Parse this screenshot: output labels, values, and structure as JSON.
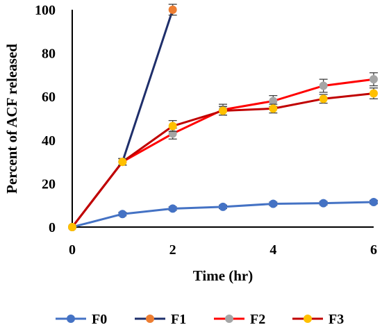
{
  "chart_data": {
    "type": "line",
    "xlabel": "Time  (hr)",
    "ylabel": "Percent of ACF released",
    "xlim": [
      0,
      6
    ],
    "ylim": [
      0,
      100
    ],
    "x_ticks": [
      "0",
      "2",
      "4",
      "6"
    ],
    "y_ticks": [
      "0",
      "20",
      "40",
      "60",
      "80",
      "100"
    ],
    "grid": false,
    "legend_position": "bottom",
    "series": [
      {
        "name": "F0",
        "line_color": "#4472c4",
        "marker_color": "#4472c4",
        "x": [
          0,
          1,
          2,
          3,
          4,
          5,
          6
        ],
        "y": [
          0,
          6,
          8.5,
          9.3,
          10.7,
          11,
          11.5
        ],
        "error": [
          0,
          0.8,
          0.8,
          0.8,
          0.8,
          0.8,
          0.8
        ]
      },
      {
        "name": "F1",
        "line_color": "#1f2f6b",
        "marker_color": "#ed7d31",
        "x": [
          0,
          1,
          2
        ],
        "y": [
          0,
          30,
          100
        ],
        "error": [
          0,
          1.5,
          2.5
        ]
      },
      {
        "name": "F2",
        "line_color": "#ff0000",
        "marker_color": "#a5a5a5",
        "x": [
          0,
          1,
          2,
          3,
          4,
          5,
          6
        ],
        "y": [
          0,
          30,
          43,
          54,
          58,
          65,
          68
        ],
        "error": [
          0,
          1.5,
          2.5,
          2.5,
          2.5,
          3,
          3
        ]
      },
      {
        "name": "F3",
        "line_color": "#c00000",
        "marker_color": "#ffc000",
        "x": [
          0,
          1,
          2,
          3,
          4,
          5,
          6
        ],
        "y": [
          0,
          30,
          46.5,
          53.5,
          54.5,
          59,
          61.5
        ],
        "error": [
          0,
          1.5,
          2.5,
          2,
          2,
          2,
          2.5
        ]
      }
    ]
  }
}
